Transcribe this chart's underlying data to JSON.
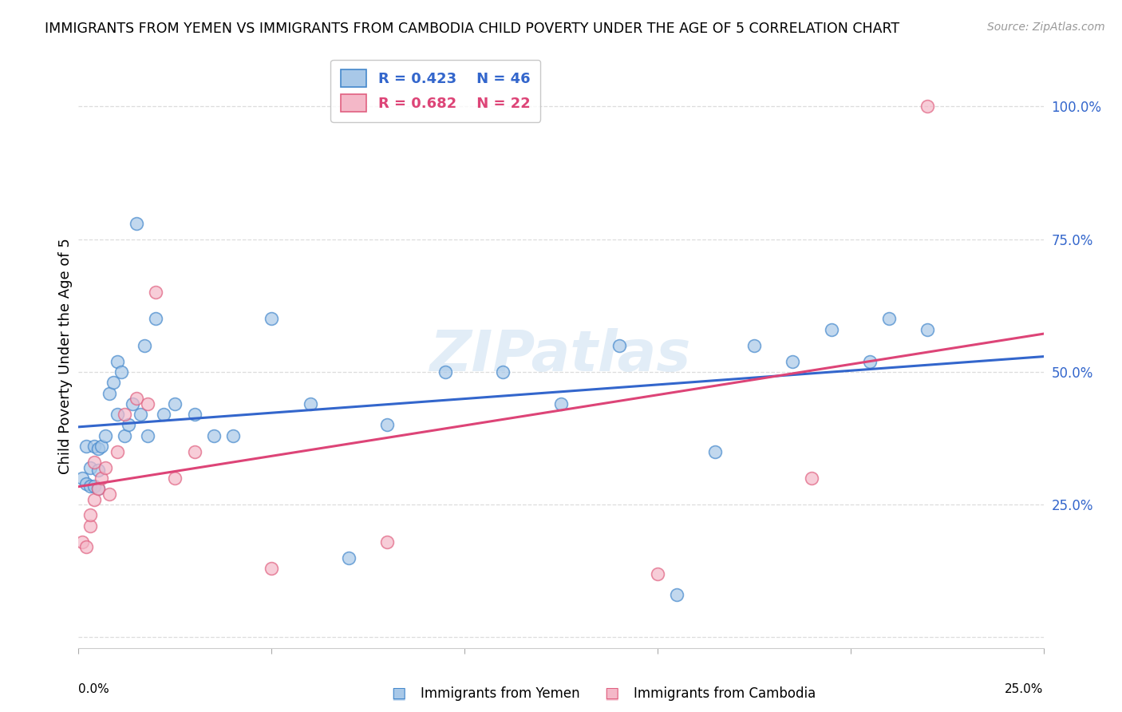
{
  "title": "IMMIGRANTS FROM YEMEN VS IMMIGRANTS FROM CAMBODIA CHILD POVERTY UNDER THE AGE OF 5 CORRELATION CHART",
  "source": "Source: ZipAtlas.com",
  "ylabel": "Child Poverty Under the Age of 5",
  "xlim": [
    0.0,
    0.25
  ],
  "ylim": [
    -0.02,
    1.08
  ],
  "ytick_vals": [
    0.0,
    0.25,
    0.5,
    0.75,
    1.0
  ],
  "ytick_labels": [
    "",
    "25.0%",
    "50.0%",
    "75.0%",
    "100.0%"
  ],
  "xtick_vals": [
    0.0,
    0.05,
    0.1,
    0.15,
    0.2,
    0.25
  ],
  "legend_blue_r": "R = 0.423",
  "legend_blue_n": "N = 46",
  "legend_pink_r": "R = 0.682",
  "legend_pink_n": "N = 22",
  "blue_face": "#a8c8e8",
  "blue_edge": "#4488cc",
  "pink_face": "#f4b8c8",
  "pink_edge": "#e06080",
  "blue_line": "#3366cc",
  "pink_line": "#dd4477",
  "watermark": "ZIPatlas",
  "grid_color": "#dddddd",
  "yemen_x": [
    0.001,
    0.002,
    0.002,
    0.003,
    0.003,
    0.004,
    0.004,
    0.005,
    0.005,
    0.005,
    0.006,
    0.007,
    0.008,
    0.009,
    0.01,
    0.01,
    0.011,
    0.012,
    0.013,
    0.014,
    0.015,
    0.016,
    0.017,
    0.018,
    0.02,
    0.022,
    0.025,
    0.03,
    0.035,
    0.04,
    0.05,
    0.06,
    0.07,
    0.08,
    0.095,
    0.11,
    0.125,
    0.14,
    0.155,
    0.165,
    0.175,
    0.185,
    0.195,
    0.205,
    0.21,
    0.22
  ],
  "yemen_y": [
    0.3,
    0.29,
    0.36,
    0.285,
    0.32,
    0.36,
    0.285,
    0.355,
    0.28,
    0.315,
    0.36,
    0.38,
    0.46,
    0.48,
    0.52,
    0.42,
    0.5,
    0.38,
    0.4,
    0.44,
    0.78,
    0.42,
    0.55,
    0.38,
    0.6,
    0.42,
    0.44,
    0.42,
    0.38,
    0.38,
    0.6,
    0.44,
    0.15,
    0.4,
    0.5,
    0.5,
    0.44,
    0.55,
    0.08,
    0.35,
    0.55,
    0.52,
    0.58,
    0.52,
    0.6,
    0.58
  ],
  "cambodia_x": [
    0.001,
    0.002,
    0.003,
    0.003,
    0.004,
    0.004,
    0.005,
    0.006,
    0.007,
    0.008,
    0.01,
    0.012,
    0.015,
    0.018,
    0.02,
    0.025,
    0.03,
    0.05,
    0.08,
    0.15,
    0.19,
    0.22
  ],
  "cambodia_y": [
    0.18,
    0.17,
    0.21,
    0.23,
    0.26,
    0.33,
    0.28,
    0.3,
    0.32,
    0.27,
    0.35,
    0.42,
    0.45,
    0.44,
    0.65,
    0.3,
    0.35,
    0.13,
    0.18,
    0.12,
    0.3,
    1.0
  ]
}
